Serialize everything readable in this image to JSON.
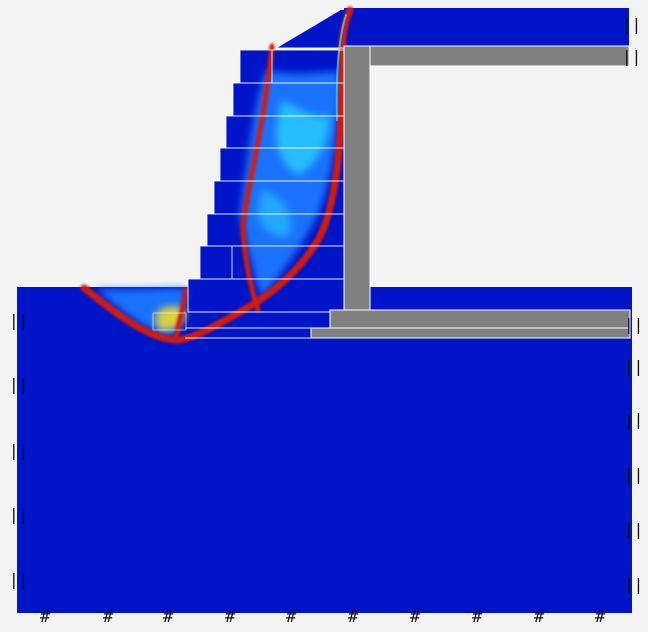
{
  "figure": {
    "background": "#f3f3f3",
    "colors": {
      "soil": "#0014c8",
      "structure": "#808080",
      "structure_edge": "#ffffff",
      "contour_low": "#1e78ff",
      "contour_mid": "#2ad6ff",
      "contour_hot": "#ffe21a",
      "contour_max": "#d11a0a"
    },
    "boundary_conditions": {
      "left": {
        "label": "||",
        "count": 5
      },
      "right": {
        "label": "||",
        "count": 6
      },
      "bottom": {
        "label": "#",
        "count": 10
      },
      "top_right": {
        "label": "||",
        "count": 2
      }
    }
  }
}
